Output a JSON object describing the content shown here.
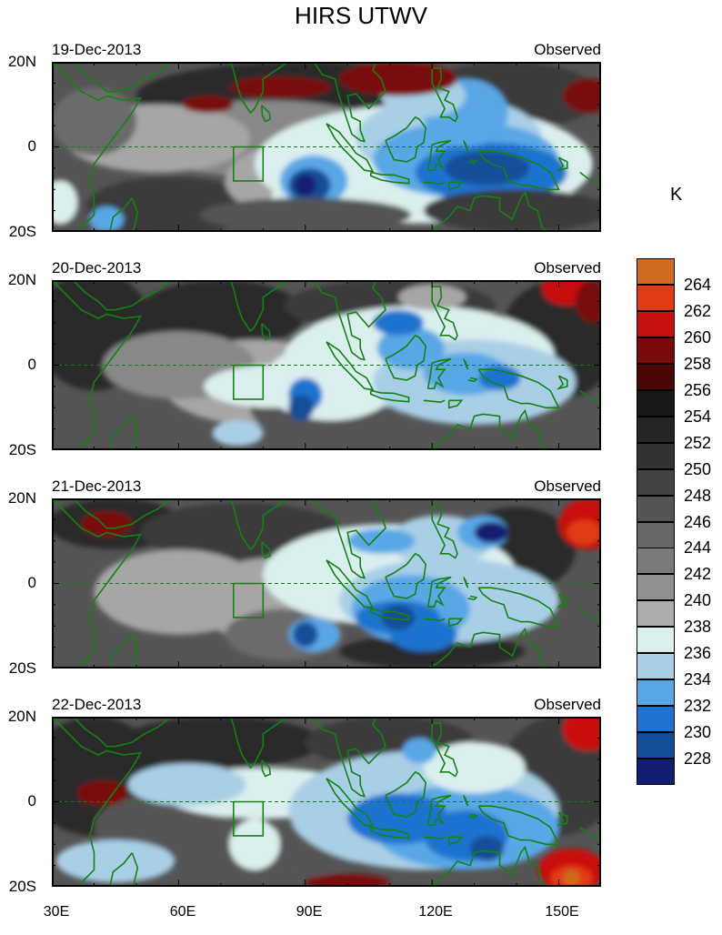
{
  "title": "HIRS UTWV",
  "panels": [
    {
      "date": "19-Dec-2013",
      "label": "Observed"
    },
    {
      "date": "20-Dec-2013",
      "label": "Observed"
    },
    {
      "date": "21-Dec-2013",
      "label": "Observed"
    },
    {
      "date": "22-Dec-2013",
      "label": "Observed"
    }
  ],
  "y_ticks": [
    "20N",
    "0",
    "20S"
  ],
  "x_ticks": [
    "30E",
    "60E",
    "90E",
    "120E",
    "150E"
  ],
  "colorbar": {
    "unit": "K",
    "levels": [
      "264",
      "262",
      "260",
      "258",
      "256",
      "254",
      "252",
      "250",
      "248",
      "246",
      "244",
      "242",
      "240",
      "238",
      "236",
      "234",
      "232",
      "230",
      "228"
    ],
    "colors": [
      "#cf6a1f",
      "#e03a16",
      "#c80f0f",
      "#7a0a0a",
      "#4a0707",
      "#191919",
      "#252525",
      "#333333",
      "#434343",
      "#545454",
      "#666666",
      "#7a7a7a",
      "#909090",
      "#acacac",
      "#dbefef",
      "#a9cfe6",
      "#5aa7e6",
      "#1f73cf",
      "#124d97",
      "#131c70"
    ]
  },
  "chart_data": {
    "type": "heatmap",
    "variable": "HIRS UTWV",
    "unit": "K",
    "lon_range": [
      30,
      160
    ],
    "lat_range": [
      -20,
      20
    ],
    "contour_levels": [
      228,
      230,
      232,
      234,
      236,
      238,
      240,
      242,
      244,
      246,
      248,
      250,
      252,
      254,
      256,
      258,
      260,
      262,
      264
    ],
    "dates": [
      "19-Dec-2013",
      "20-Dec-2013",
      "21-Dec-2013",
      "22-Dec-2013"
    ]
  }
}
